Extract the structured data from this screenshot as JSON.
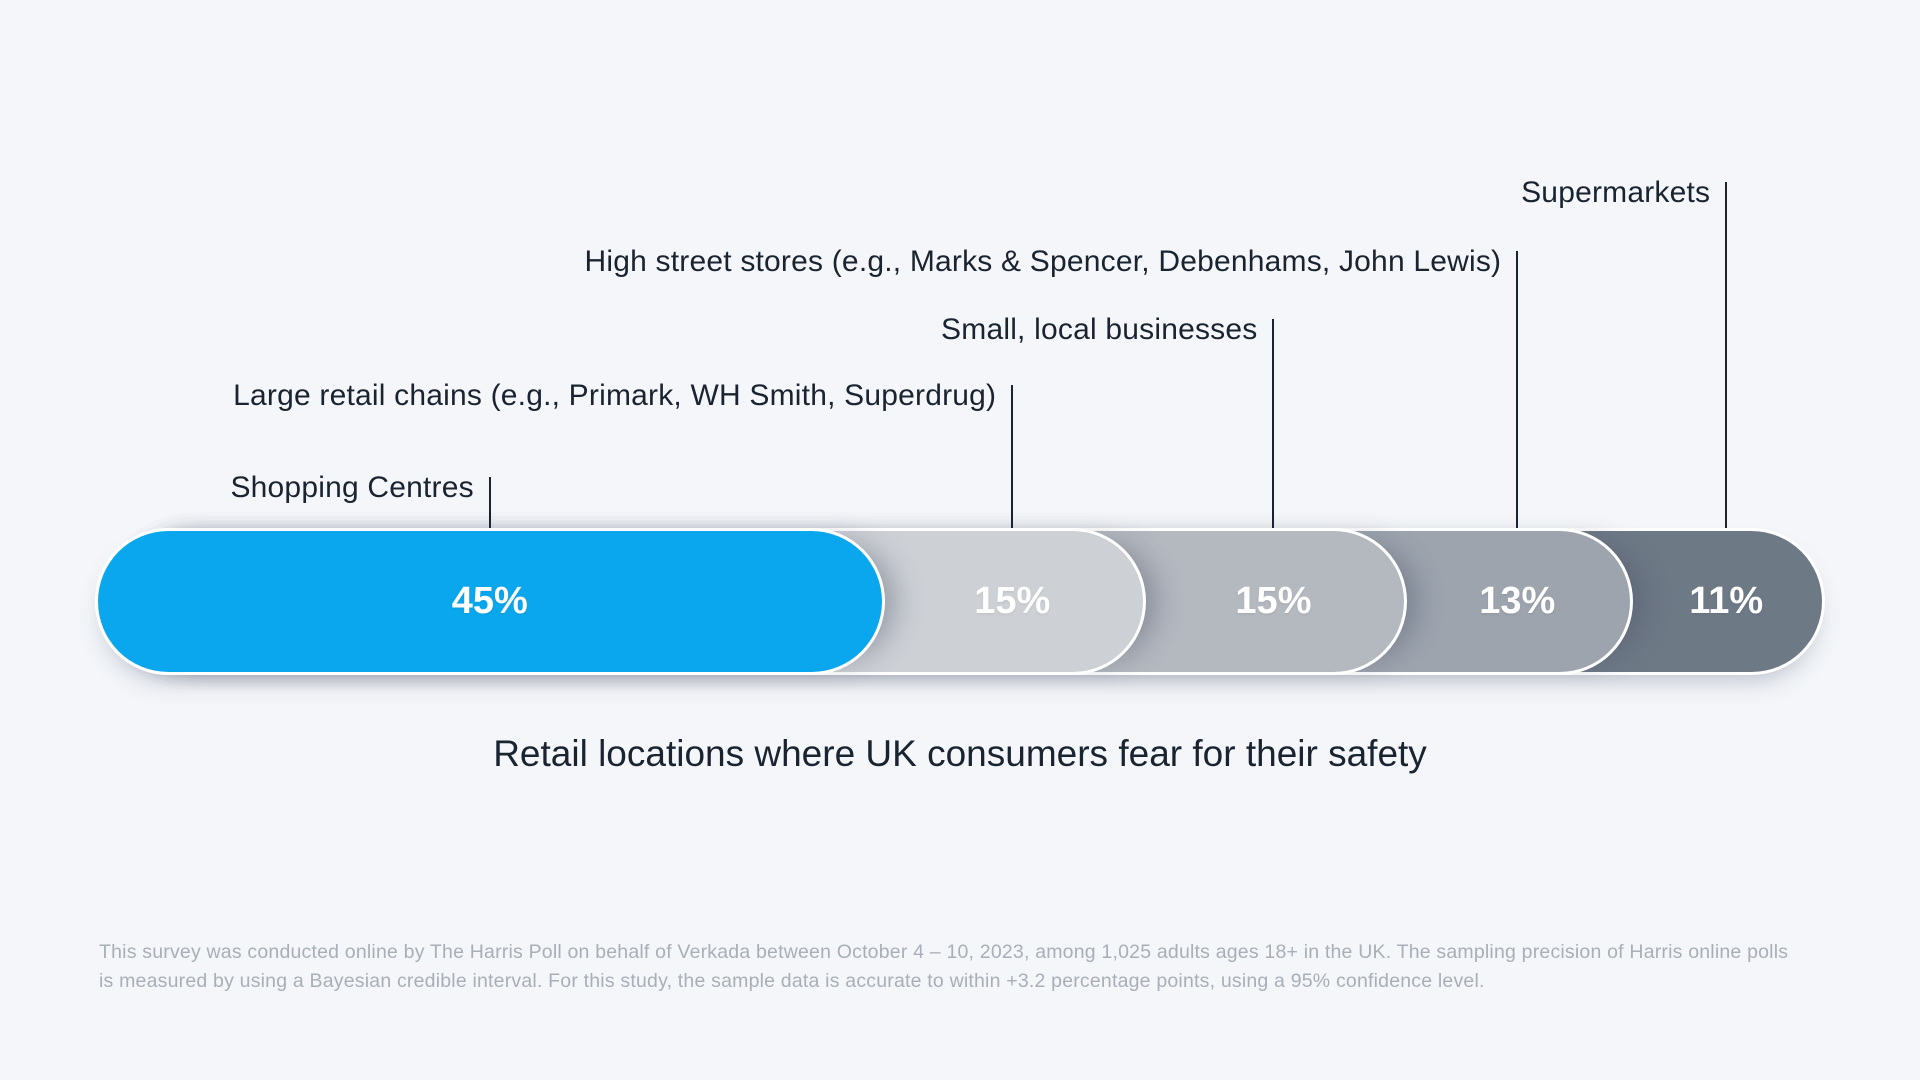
{
  "page": {
    "background": "#f4f6f9"
  },
  "chart_data": {
    "type": "bar",
    "orientation": "horizontal_stacked",
    "title": "Retail locations where UK consumers fear for their safety",
    "unit": "%",
    "label_color": "#1a2430",
    "value_label_color": "#ffffff",
    "series": [
      {
        "label": "Shopping Centres",
        "value": 45,
        "display": "45%",
        "color": "#0aa7ee"
      },
      {
        "label": "Large retail chains (e.g., Primark, WH Smith, Superdrug)",
        "value": 15,
        "display": "15%",
        "color": "#cdd0d5"
      },
      {
        "label": "Small, local businesses",
        "value": 15,
        "display": "15%",
        "color": "#b4b8bf"
      },
      {
        "label": "High street stores (e.g., Marks & Spencer, Debenhams, John Lewis)",
        "value": 13,
        "display": "13%",
        "color": "#9da4ae"
      },
      {
        "label": "Supermarkets",
        "value": 11,
        "display": "11%",
        "color": "#6e7986"
      }
    ],
    "footnote": {
      "line1": "This survey was conducted online by The Harris Poll on behalf of Verkada between October 4 – 10, 2023, among 1,025 adults ages 18+ in the UK. The sampling precision of Harris online polls",
      "line2": "is measured by using a Bayesian credible interval. For this study, the sample data is accurate to within +3.2 percentage points, using a 95% confidence level."
    }
  }
}
